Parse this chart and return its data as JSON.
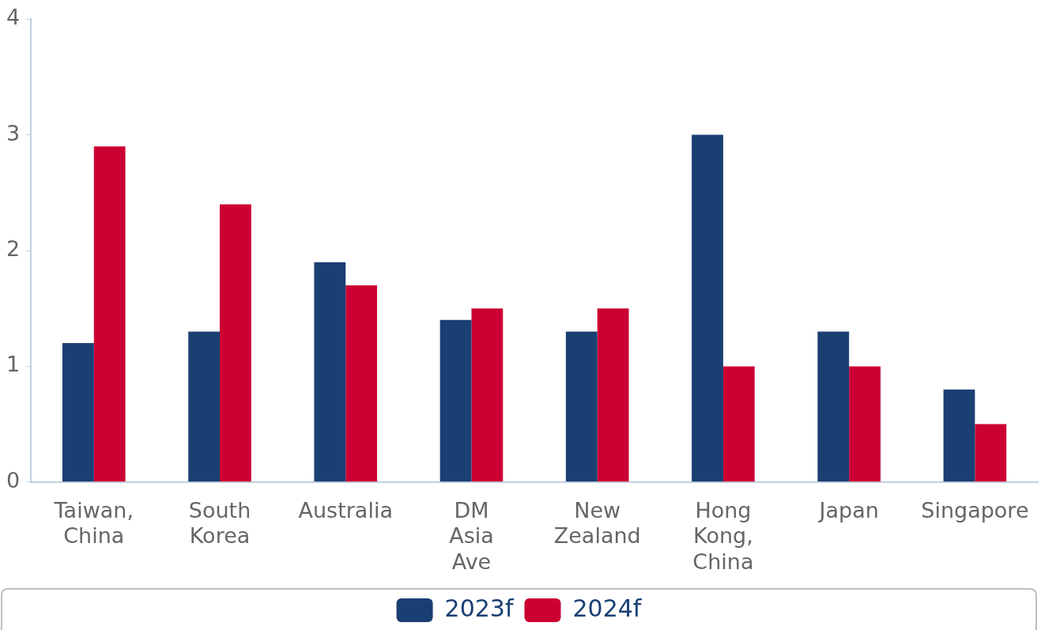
{
  "chart_data": {
    "type": "bar",
    "categories": [
      "Taiwan, China",
      "South Korea",
      "Australia",
      "DM Asia Ave",
      "New Zealand",
      "Hong Kong, China",
      "Japan",
      "Singapore"
    ],
    "series": [
      {
        "name": "2023f",
        "color": "#1a3f73",
        "values": [
          1.2,
          1.3,
          1.9,
          1.4,
          1.3,
          3.0,
          1.3,
          0.8
        ]
      },
      {
        "name": "2024f",
        "color": "#cc0033",
        "values": [
          2.9,
          2.4,
          1.7,
          1.5,
          1.5,
          1.0,
          1.0,
          0.5
        ]
      }
    ],
    "ylim": [
      0,
      4
    ],
    "yticks": [
      0,
      1,
      2,
      3,
      4
    ],
    "grid": false,
    "legend": "bottom"
  }
}
